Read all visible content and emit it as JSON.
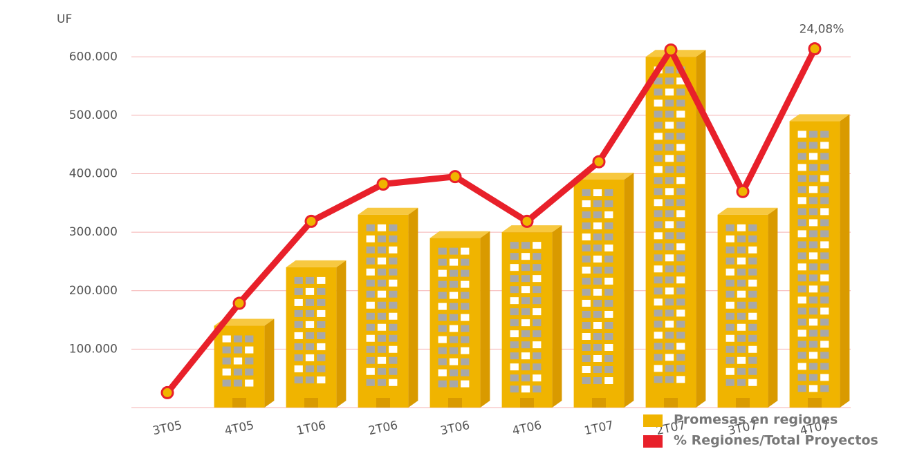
{
  "chart_data": {
    "type": "bar-line",
    "y_label": "UF",
    "categories": [
      "3T05",
      "4T05",
      "1T06",
      "2T06",
      "3T06",
      "4T06",
      "1T07",
      "2T07",
      "3T07",
      "4T07"
    ],
    "series": [
      {
        "name": "Promesas en regiones",
        "color": "#f0b400",
        "type": "bar",
        "values": [
          null,
          140000,
          240000,
          330000,
          290000,
          300000,
          390000,
          600000,
          330000,
          490000
        ]
      },
      {
        "name": "% Regiones/Total Proyectos",
        "color": "#e8202a",
        "type": "line",
        "axis": "y2",
        "values": [
          1,
          7,
          12.5,
          15,
          15.5,
          12.5,
          16.5,
          24,
          14.5,
          24.08
        ],
        "value_labels": [
          null,
          null,
          null,
          null,
          null,
          null,
          null,
          null,
          null,
          "24,08%"
        ]
      }
    ],
    "ylim": [
      0,
      650000
    ],
    "yticks": [
      {
        "value": 100000,
        "label": "100.000"
      },
      {
        "value": 200000,
        "label": "200.000"
      },
      {
        "value": 300000,
        "label": "300.000"
      },
      {
        "value": 400000,
        "label": "400.000"
      },
      {
        "value": 500000,
        "label": "500.000"
      },
      {
        "value": 600000,
        "label": "600.000"
      }
    ],
    "y2lim": [
      0,
      25.5
    ],
    "grid": true
  }
}
